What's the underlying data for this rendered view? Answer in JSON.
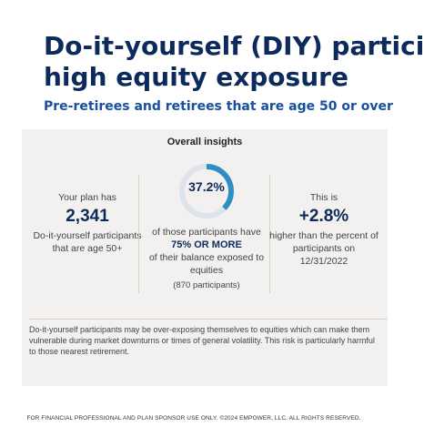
{
  "header": {
    "title_line1": "Do-it-yourself (DIY) partici",
    "title_line2": "high equity exposure",
    "subtitle": "Pre-retirees and retirees that are age 50 or over"
  },
  "insights": {
    "heading": "Overall insights",
    "left": {
      "intro": "Your plan has",
      "count": "2,341",
      "desc": "Do-it-yourself participants that are age 50+"
    },
    "middle": {
      "percent_label": "37.2%",
      "percent_value": 37.2,
      "line1": "of those participants have",
      "emphasis": "75% OR MORE",
      "line2": "of their balance exposed to equities",
      "participants": "(870 participants)"
    },
    "right": {
      "intro": "This is",
      "change": "+2.8%",
      "desc": "higher than the percent of participants on 12/31/2022"
    },
    "colors": {
      "donut_fill": "#2f8fc5",
      "donut_track": "#dde3ea"
    },
    "disclaimer": "Do-it-yourself participants may be over-exposing themselves to equities which can make them vulnerable during market downturns or times of general volatility. This risk is particularly harmful to those nearest retirement."
  },
  "footer": {
    "text": "FOR FINANCIAL PROFESSIONAL AND PLAN SPONSOR USE ONLY. ©2024 EMPOWER, LLC. ALL RIGHTS RESERVED."
  }
}
